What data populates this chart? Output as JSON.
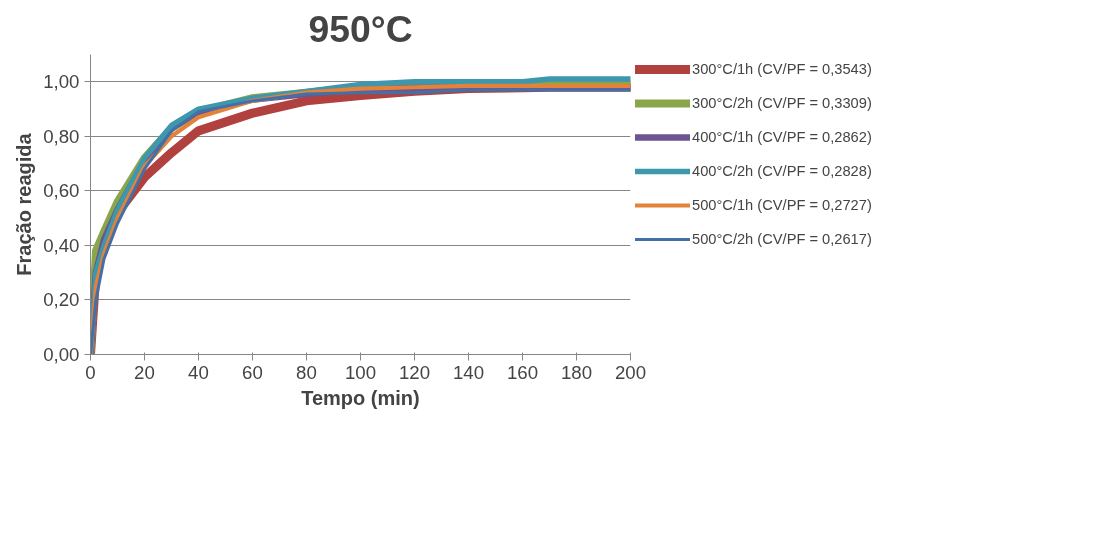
{
  "chart_data": {
    "type": "line",
    "title": "950°C",
    "xlabel": "Tempo (min)",
    "ylabel": "Fração reagida",
    "xlim": [
      0,
      200
    ],
    "xticks": [
      0,
      20,
      40,
      60,
      80,
      100,
      120,
      140,
      160,
      180,
      200
    ],
    "ylim": [
      0,
      1.1
    ],
    "yticks": [
      {
        "value": 0,
        "label": "0,00"
      },
      {
        "value": 0.2,
        "label": "0,20"
      },
      {
        "value": 0.4,
        "label": "0,40"
      },
      {
        "value": 0.6,
        "label": "0,60"
      },
      {
        "value": 0.8,
        "label": "0,80"
      },
      {
        "value": 1.0,
        "label": "1,00"
      }
    ],
    "grid": "y",
    "legend": "right",
    "marker": "none",
    "line_style": "solid",
    "x": [
      0,
      2,
      5,
      10,
      20,
      30,
      40,
      60,
      80,
      100,
      120,
      140,
      160,
      170,
      200
    ],
    "series": [
      {
        "name": "300°C/1h (CV/PF = 0,3543)",
        "color": "#b0413e",
        "values": [
          0,
          0.3,
          0.42,
          0.52,
          0.65,
          0.74,
          0.82,
          0.885,
          0.93,
          0.95,
          0.965,
          0.975,
          0.978,
          0.98,
          0.98
        ]
      },
      {
        "name": "300°C/2h (CV/PF = 0,3309)",
        "color": "#8aa64b",
        "values": [
          0,
          0.38,
          0.45,
          0.56,
          0.72,
          0.83,
          0.89,
          0.94,
          0.96,
          0.98,
          0.982,
          0.985,
          0.988,
          0.99,
          0.99
        ]
      },
      {
        "name": "400°C/1h (CV/PF = 0,2862)",
        "color": "#6d538f",
        "values": [
          0,
          0.3,
          0.42,
          0.53,
          0.71,
          0.83,
          0.89,
          0.935,
          0.955,
          0.975,
          0.978,
          0.98,
          0.98,
          0.98,
          0.98
        ]
      },
      {
        "name": "400°C/2h (CV/PF = 0,2828)",
        "color": "#3d97ad",
        "values": [
          0,
          0.3,
          0.4,
          0.53,
          0.72,
          0.84,
          0.9,
          0.94,
          0.965,
          0.99,
          1.0,
          1.0,
          1.0,
          1.01,
          1.01
        ]
      },
      {
        "name": "500°C/1h (CV/PF = 0,2727)",
        "color": "#e3823a",
        "values": [
          0,
          0.25,
          0.37,
          0.5,
          0.69,
          0.8,
          0.87,
          0.93,
          0.96,
          0.975,
          0.98,
          0.985,
          0.985,
          0.985,
          0.985
        ]
      },
      {
        "name": "500°C/2h (CV/PF = 0,2617)",
        "color": "#4470a8",
        "values": [
          0,
          0.2,
          0.35,
          0.48,
          0.68,
          0.82,
          0.89,
          0.93,
          0.955,
          0.96,
          0.96,
          0.97,
          0.97,
          0.97,
          0.97
        ]
      }
    ]
  }
}
